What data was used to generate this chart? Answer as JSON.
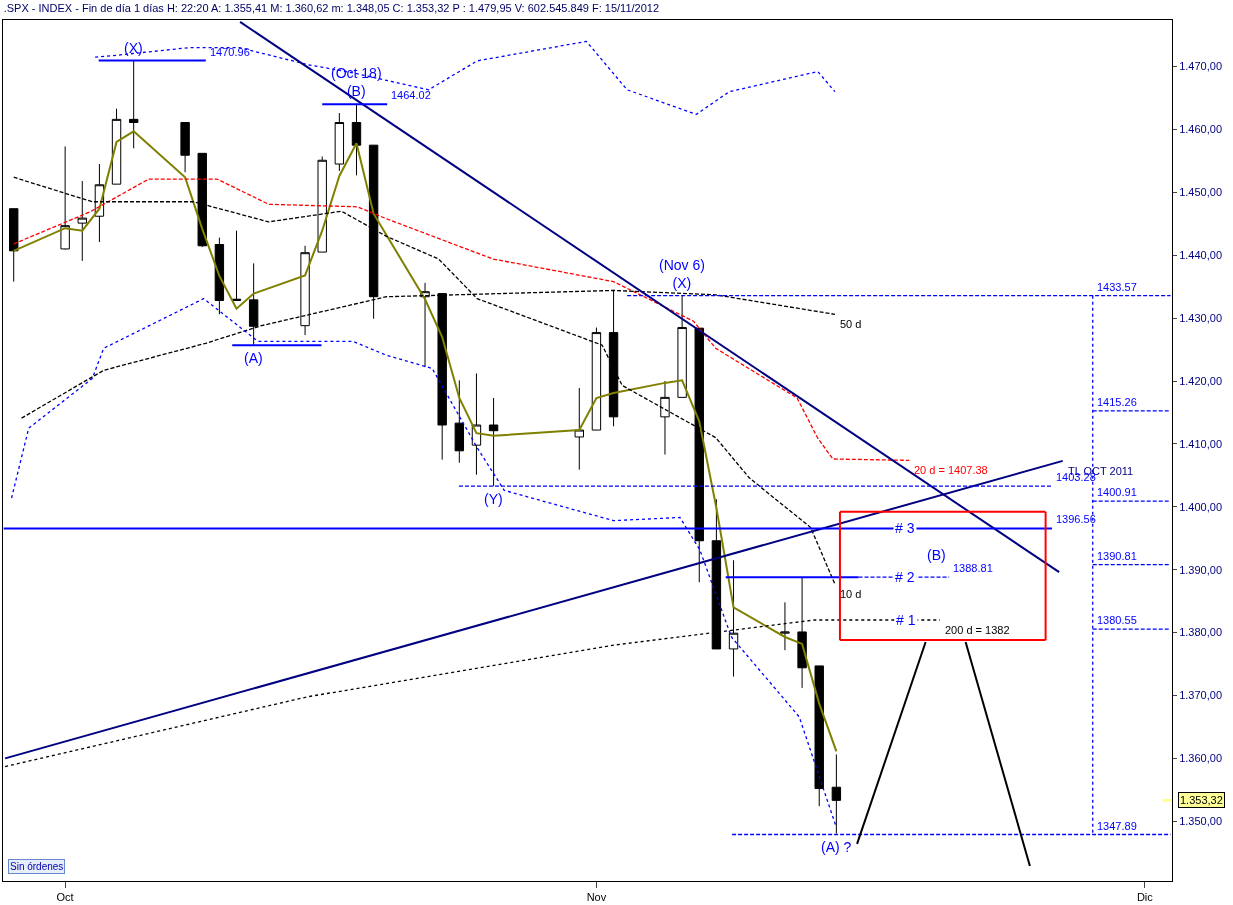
{
  "chart_data": {
    "type": "candlestick",
    "title": ".SPX - INDEX - Fin de día 1 días H: 22:20 A: 1.355,41 M: 1.360,62 m: 1.348,05 C: 1.353,32 P : 1.479,95 V: 602.545.849 F: 15/11/2012",
    "x": [
      "2012-09-28",
      "2012-10-01",
      "2012-10-02",
      "2012-10-03",
      "2012-10-04",
      "2012-10-05",
      "2012-10-08",
      "2012-10-09",
      "2012-10-10",
      "2012-10-11",
      "2012-10-12",
      "2012-10-15",
      "2012-10-16",
      "2012-10-17",
      "2012-10-18",
      "2012-10-19",
      "2012-10-22",
      "2012-10-23",
      "2012-10-24",
      "2012-10-25",
      "2012-10-26",
      "2012-10-31",
      "2012-11-01",
      "2012-11-02",
      "2012-11-05",
      "2012-11-06",
      "2012-11-07",
      "2012-11-08",
      "2012-11-09",
      "2012-11-12",
      "2012-11-13",
      "2012-11-14",
      "2012-11-15"
    ],
    "ohlc": [
      [
        1447.4,
        1447.4,
        1435.8,
        1440.7
      ],
      [
        1441.0,
        1457.3,
        1440.9,
        1444.7
      ],
      [
        1445.1,
        1451.8,
        1439.1,
        1445.9
      ],
      [
        1446.2,
        1454.5,
        1442.1,
        1451.2
      ],
      [
        1451.3,
        1463.3,
        1451.3,
        1461.6
      ],
      [
        1461.6,
        1470.96,
        1457.0,
        1461.1
      ],
      [
        1461.1,
        1461.1,
        1453.2,
        1455.9
      ],
      [
        1456.2,
        1456.2,
        1441.3,
        1441.5
      ],
      [
        1441.7,
        1442.8,
        1430.6,
        1432.8
      ],
      [
        1432.8,
        1443.9,
        1432.8,
        1433.0
      ],
      [
        1432.9,
        1438.7,
        1425.7,
        1428.7
      ],
      [
        1428.8,
        1441.5,
        1427.3,
        1440.4
      ],
      [
        1440.5,
        1455.7,
        1440.5,
        1455.1
      ],
      [
        1454.5,
        1462.6,
        1453.4,
        1461.1
      ],
      [
        1461.1,
        1464.02,
        1452.7,
        1457.5
      ],
      [
        1457.5,
        1457.5,
        1429.9,
        1433.4
      ],
      [
        1433.4,
        1435.6,
        1422.2,
        1434.2
      ],
      [
        1433.9,
        1433.9,
        1407.5,
        1413.0
      ],
      [
        1413.3,
        1420.1,
        1407.0,
        1408.9
      ],
      [
        1409.8,
        1421.2,
        1405.1,
        1413.0
      ],
      [
        1413.0,
        1417.3,
        1403.28,
        1412.1
      ],
      [
        1411.1,
        1418.9,
        1405.9,
        1412.2
      ],
      [
        1412.2,
        1428.5,
        1412.2,
        1427.7
      ],
      [
        1427.7,
        1434.5,
        1412.8,
        1414.3
      ],
      [
        1414.3,
        1420.0,
        1408.3,
        1417.4
      ],
      [
        1417.4,
        1433.57,
        1417.4,
        1428.5
      ],
      [
        1428.4,
        1428.4,
        1388.0,
        1394.6
      ],
      [
        1394.6,
        1401.2,
        1377.4,
        1377.4
      ],
      [
        1377.4,
        1391.5,
        1373.0,
        1379.9
      ],
      [
        1379.9,
        1384.8,
        1377.2,
        1380.1
      ],
      [
        1380.1,
        1388.81,
        1371.2,
        1374.4
      ],
      [
        1374.7,
        1374.7,
        1352.4,
        1355.2
      ],
      [
        1355.41,
        1360.62,
        1348.05,
        1353.32
      ]
    ],
    "series": [
      {
        "type": "line",
        "color": "#808000",
        "line_style": "solid",
        "values": [
          1440.7,
          1444.3,
          1443.9,
          1447.4,
          1458.0,
          1459.7,
          1452.4,
          1444.2,
          1436.7,
          1431.5,
          1433.9,
          1436.8,
          1443.9,
          1452.6,
          1457.8,
          1446.6,
          1433.0,
          1427.0,
          1417.3,
          1411.7,
          1411.3,
          1412.2,
          1417.3,
          1418.1,
          1419.7,
          1420.1,
          1413.6,
          1399.8,
          1384.0,
          1379.3,
          1378.2,
          1368.7,
          1361.1
        ]
      },
      {
        "type": "line",
        "name": "20 d = 1407.38",
        "color": "#ff0000",
        "line_style": "dashed",
        "x": [
          "2012-09-28",
          "2012-10-02T11:00",
          "2012-10-05T21:00",
          "2012-10-09T21:00",
          "2012-10-12T21:00",
          "2012-10-18T01:00",
          "2012-10-19T18:00",
          "2012-10-25T23:00",
          "2012-11-02",
          "2012-11-06T16:00",
          "2012-11-07T23:00",
          "2012-11-12T17:00",
          "2012-11-13T22:00",
          "2012-11-14T19:00",
          "2012-11-19T06:00"
        ],
        "values": [
          1441.8,
          1446.9,
          1452.1,
          1452.1,
          1448.1,
          1447.7,
          1445.8,
          1439.4,
          1435.8,
          1429.5,
          1425.2,
          1417.3,
          1410.9,
          1407.6,
          1407.38
        ]
      },
      {
        "type": "line",
        "name": "10 d",
        "color": "#000000",
        "line_style": "dashed",
        "x": [
          "2012-09-28",
          "2012-10-02T14:00",
          "2012-10-08T12:00",
          "2012-10-12T21:00",
          "2012-10-17T03:00",
          "2012-10-19T18:00",
          "2012-10-22T19:00",
          "2012-10-25T01:00",
          "2012-11-01T08:00",
          "2012-11-02T12:00",
          "2012-11-07T23:00",
          "2012-11-09T22:00",
          "2012-11-13T12:00",
          "2012-11-14T22:00"
        ],
        "values": [
          1452.4,
          1448.5,
          1448.5,
          1445.3,
          1447.0,
          1443.0,
          1439.4,
          1433.1,
          1425.7,
          1419.3,
          1411.0,
          1404.6,
          1396.7,
          1387.7
        ]
      },
      {
        "type": "line",
        "name": "50 d",
        "color": "#000000",
        "line_style": "dashed",
        "x": [
          "2012-09-28T11:00",
          "2012-10-03T06:00",
          "2012-10-09T05:00",
          "2012-10-12T11:00",
          "2012-10-19T18:00",
          "2012-11-02",
          "2012-11-07T23:00",
          "2012-11-14T22:00"
        ],
        "values": [
          1414.1,
          1421.7,
          1426.0,
          1428.8,
          1433.4,
          1434.4,
          1433.7,
          1430.6
        ]
      },
      {
        "type": "line",
        "name": "200 d = 1382",
        "color": "#000000",
        "line_style": "dotted",
        "x": [
          "2012-09-27T12:00",
          "2012-10-15T04:00",
          "2012-11-02",
          "2012-11-13T17:00",
          "2012-11-21T01:00"
        ],
        "values": [
          1358.7,
          1369.8,
          1378.0,
          1382.0,
          1382.0
        ]
      },
      {
        "type": "line",
        "color": "#0000ff",
        "line_style": "dotted",
        "x": [
          "2012-10-02T18:00",
          "2012-10-04T01:00",
          "2012-10-08T05:00",
          "2012-10-11T04:00",
          "2012-10-15T04:00",
          "2012-10-17T19:00",
          "2012-10-22T05:00",
          "2012-10-25T01:00",
          "2012-10-31T10:00",
          "2012-11-02T19:00",
          "2012-11-06T20:00",
          "2012-11-08T18:00",
          "2012-11-13T22:00",
          "2012-11-14T22:00"
        ],
        "values": [
          1471.5,
          1471.8,
          1473.0,
          1473.0,
          1470.3,
          1469.0,
          1466.3,
          1470.9,
          1474.0,
          1466.3,
          1462.4,
          1466.0,
          1469.2,
          1466.0
        ]
      },
      {
        "type": "line",
        "color": "#0000ff",
        "line_style": "dotted",
        "x": [
          "2012-09-27T21:00",
          "2012-09-28T21:00",
          "2012-10-02T14:00",
          "2012-10-03T06:00",
          "2012-10-09T02:00",
          "2012-10-12T06:00",
          "2012-10-17T19:00",
          "2012-10-19T18:00",
          "2012-10-22T10:00",
          "2012-10-25T01:00",
          "2012-10-26T15:00",
          "2012-11-02",
          "2012-11-05T21:00",
          "2012-11-07T01:00",
          "2012-11-08T21:00",
          "2012-11-12T20:00",
          "2012-11-14T23:30"
        ],
        "values": [
          1401.4,
          1412.5,
          1420.4,
          1425.2,
          1433.1,
          1426.3,
          1426.3,
          1424.1,
          1422.0,
          1409.4,
          1402.6,
          1397.8,
          1398.3,
          1393.1,
          1379.3,
          1366.6,
          1349.2
        ]
      },
      {
        "type": "line",
        "name": "TL OCT 2011",
        "color": "#000080",
        "line_style": "solid",
        "x": [
          "2012-09-27T12:00",
          "2012-11-28T05:00"
        ],
        "values": [
          1360.0,
          1407.3
        ]
      },
      {
        "type": "line",
        "color": "#000080",
        "line_style": "solid",
        "x": [
          "2012-10-11T05:00",
          "2012-11-28"
        ],
        "values": [
          1477.1,
          1389.6
        ]
      },
      {
        "type": "line",
        "color": "#0000ff",
        "line_style": "solid",
        "x": [
          "2012-10-02T23:00",
          "2012-10-09T05:00"
        ],
        "values": [
          1470.96,
          1470.96
        ],
        "value_labels": [
          null,
          "1470.96"
        ]
      },
      {
        "type": "line",
        "color": "#0000ff",
        "line_style": "solid",
        "x": [
          "2012-10-16",
          "2012-10-19T19:00"
        ],
        "values": [
          1464.02,
          1464.02
        ],
        "value_labels": [
          null,
          "1464.02"
        ]
      },
      {
        "type": "line",
        "color": "#0000ff",
        "line_style": "solid",
        "x": [
          "2012-10-10T18:00",
          "2012-10-15T23:00"
        ],
        "values": [
          1425.7,
          1425.7
        ]
      },
      {
        "type": "line",
        "color": "#0000ff",
        "line_style": "dashed",
        "x": [
          "2012-11-02T19:00",
          "2012-12-04T12:00"
        ],
        "values": [
          1433.57,
          1433.57
        ]
      },
      {
        "type": "line",
        "color": "#0000ff",
        "line_style": "dashed",
        "x": [
          "2012-10-23T23:30",
          "2012-11-27T14:00"
        ],
        "values": [
          1403.28,
          1403.28
        ],
        "value_labels": [
          null,
          "1403.28"
        ]
      },
      {
        "type": "line",
        "color": "#0000ff",
        "line_style": "solid",
        "x": [
          "2012-09-27T10:00",
          "2012-11-27T14:00"
        ],
        "values": [
          1396.56,
          1396.56
        ],
        "value_labels": [
          null,
          "1396.56"
        ]
      },
      {
        "type": "line",
        "color": "#0000ff",
        "line_style": "solid",
        "x": [
          "2012-11-08T13:00",
          "2012-11-16T07:00"
        ],
        "values": [
          1388.81,
          1388.81
        ]
      },
      {
        "type": "line",
        "color": "#0000ff",
        "line_style": "dashed",
        "x": [
          "2012-11-16T07:00",
          "2012-11-21T14:00"
        ],
        "values": [
          1388.81,
          1388.81
        ],
        "value_labels": [
          null,
          "1388.81"
        ]
      },
      {
        "type": "line",
        "color": "#0000ff",
        "line_style": "dashed",
        "x": [
          "2012-11-29T23:00",
          "2012-12-04T12:00"
        ],
        "values": [
          1415.26,
          1415.26
        ],
        "value_labels": [
          "1415.26",
          null
        ]
      },
      {
        "type": "line",
        "color": "#0000ff",
        "line_style": "dashed",
        "x": [
          "2012-11-29T23:00",
          "2012-12-04T12:00"
        ],
        "values": [
          1400.91,
          1400.91
        ],
        "value_labels": [
          "1400.91",
          null
        ]
      },
      {
        "type": "line",
        "color": "#0000ff",
        "line_style": "dashed",
        "x": [
          "2012-11-29T23:00",
          "2012-12-04T12:00"
        ],
        "values": [
          1390.81,
          1390.81
        ],
        "value_labels": [
          "1390.81",
          null
        ]
      },
      {
        "type": "line",
        "color": "#0000ff",
        "line_style": "dashed",
        "x": [
          "2012-11-29T23:00",
          "2012-12-04T12:00"
        ],
        "values": [
          1380.55,
          1380.55
        ],
        "value_labels": [
          "1380.55",
          null
        ]
      },
      {
        "type": "line",
        "color": "#0000ff",
        "line_style": "dashed",
        "x": [
          "2012-11-08T22:00",
          "2012-12-04T12:00"
        ],
        "values": [
          1347.89,
          1347.89
        ]
      },
      {
        "type": "line",
        "color": "#0000ff",
        "line_style": "dotted",
        "x": [
          "2012-11-29T23:00",
          "2012-11-29T23:00"
        ],
        "values": [
          1433.57,
          1347.89
        ],
        "value_labels": [
          "1433.57",
          "1347.89"
        ]
      },
      {
        "type": "line",
        "color": "#ff0000",
        "line_style": "solid",
        "x": [
          "2012-11-15T05:00",
          "2012-11-27T05:00"
        ],
        "values": [
          1399.2,
          1399.2
        ]
      },
      {
        "type": "line",
        "color": "#ff0000",
        "line_style": "solid",
        "x": [
          "2012-11-15T05:00",
          "2012-11-27T05:00"
        ],
        "values": [
          1378.8,
          1378.8
        ]
      },
      {
        "type": "line",
        "color": "#ff0000",
        "line_style": "solid",
        "x": [
          "2012-11-15T05:00",
          "2012-11-15T05:00"
        ],
        "values": [
          1399.2,
          1378.8
        ]
      },
      {
        "type": "line",
        "color": "#ff0000",
        "line_style": "solid",
        "x": [
          "2012-11-27T05:00",
          "2012-11-27T05:00"
        ],
        "values": [
          1399.2,
          1378.8
        ]
      },
      {
        "type": "line",
        "color": "#000000",
        "line_style": "solid",
        "x": [
          "2012-11-16T05:00",
          "2012-11-20T05:00"
        ],
        "values": [
          1346.4,
          1378.5
        ]
      },
      {
        "type": "line",
        "color": "#000000",
        "line_style": "solid",
        "x": [
          "2012-11-22T13:00",
          "2012-11-26T07:00"
        ],
        "values": [
          1378.5,
          1342.9
        ]
      }
    ],
    "annotations": [
      {
        "text": "(X)",
        "x": "2012-10-05",
        "y": 1470.96
      },
      {
        "text": "(Oct 18)\n(B)",
        "x": "2012-10-18",
        "y": 1464.02
      },
      {
        "text": "(A)",
        "x": "2012-10-12",
        "y": 1425.7
      },
      {
        "text": "(Nov 6)\n(X)",
        "x": "2012-11-06",
        "y": 1433.57
      },
      {
        "text": "(Y)",
        "x": "2012-10-26",
        "y": 1403.28
      },
      {
        "text": "(A) ?",
        "x": "2012-11-15",
        "y": 1348.05
      },
      {
        "text": "(B)",
        "x": "2012-11-20T20:00",
        "y": 1392.4
      },
      {
        "text": "# 3",
        "x": "2012-11-19",
        "y": 1396.56
      },
      {
        "text": "# 2",
        "x": "2012-11-19",
        "y": 1388.81
      },
      {
        "text": "# 1",
        "x": "2012-11-19T02:00",
        "y": 1382.0
      },
      "Sin órdenes"
    ],
    "ref_lines": [
      {
        "axis": "y",
        "value": 1353.32,
        "label": "1.353,32",
        "color": "#ffff99"
      }
    ],
    "xlim": [
      "2012-09-27T09:00",
      "2012-12-04T14:00"
    ],
    "xticks": [
      {
        "value": "2012-10-01",
        "label": "Oct"
      },
      {
        "value": "2012-11-01",
        "label": "Nov"
      },
      {
        "value": "2012-12-03",
        "label": "Dic"
      }
    ],
    "ylim": [
      1340.5,
      1477.4
    ],
    "yticks": [
      {
        "value": 1350,
        "label": "1.350,00"
      },
      {
        "value": 1360,
        "label": "1.360,00"
      },
      {
        "value": 1370,
        "label": "1.370,00"
      },
      {
        "value": 1380,
        "label": "1.380,00"
      },
      {
        "value": 1390,
        "label": "1.390,00"
      },
      {
        "value": 1400,
        "label": "1.400,00"
      },
      {
        "value": 1410,
        "label": "1.410,00"
      },
      {
        "value": 1420,
        "label": "1.420,00"
      },
      {
        "value": 1430,
        "label": "1.430,00"
      },
      {
        "value": 1440,
        "label": "1.440,00"
      },
      {
        "value": 1450,
        "label": "1.450,00"
      },
      {
        "value": 1460,
        "label": "1.460,00"
      },
      {
        "value": 1470,
        "label": "1.470,00"
      }
    ]
  }
}
